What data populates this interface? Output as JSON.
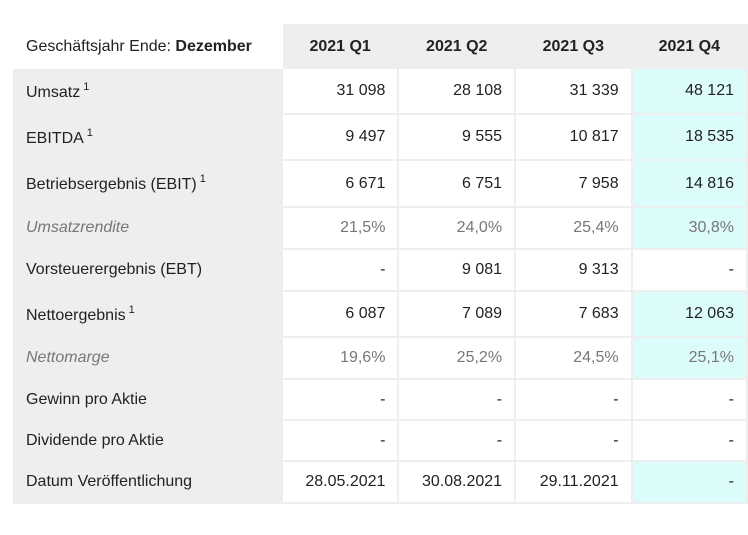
{
  "header": {
    "label": "Geschäftsjahr Ende:",
    "label_bold": "Dezember",
    "columns": [
      "2021 Q1",
      "2021 Q2",
      "2021 Q3",
      "2021 Q4"
    ]
  },
  "highlight_color": "#dcfbfb",
  "rows": [
    {
      "label": "Umsatz",
      "sup": "1",
      "values": [
        "31 098",
        "28 108",
        "31 339",
        "48 121"
      ],
      "q4_highlight": true
    },
    {
      "label": "EBITDA",
      "sup": "1",
      "values": [
        "9 497",
        "9 555",
        "10 817",
        "18 535"
      ],
      "q4_highlight": true
    },
    {
      "label": "Betriebsergebnis (EBIT)",
      "sup": "1",
      "values": [
        "6 671",
        "6 751",
        "7 958",
        "14 816"
      ],
      "q4_highlight": true
    },
    {
      "label": "Umsatzrendite",
      "italic": true,
      "values": [
        "21,5%",
        "24,0%",
        "25,4%",
        "30,8%"
      ],
      "q4_highlight": true
    },
    {
      "label": "Vorsteuerergebnis (EBT)",
      "values": [
        "-",
        "9 081",
        "9 313",
        "-"
      ],
      "q4_highlight": false
    },
    {
      "label": "Nettoergebnis",
      "sup": "1",
      "values": [
        "6 087",
        "7 089",
        "7 683",
        "12 063"
      ],
      "q4_highlight": true
    },
    {
      "label": "Nettomarge",
      "italic": true,
      "values": [
        "19,6%",
        "25,2%",
        "24,5%",
        "25,1%"
      ],
      "q4_highlight": true
    },
    {
      "label": "Gewinn pro Aktie",
      "values": [
        "-",
        "-",
        "-",
        "-"
      ],
      "q4_highlight": false
    },
    {
      "label": "Dividende pro Aktie",
      "values": [
        "-",
        "-",
        "-",
        "-"
      ],
      "q4_highlight": false
    },
    {
      "label": "Datum Veröffentlichung",
      "values": [
        "28.05.2021",
        "30.08.2021",
        "29.11.2021",
        "-"
      ],
      "q4_highlight": true
    }
  ]
}
